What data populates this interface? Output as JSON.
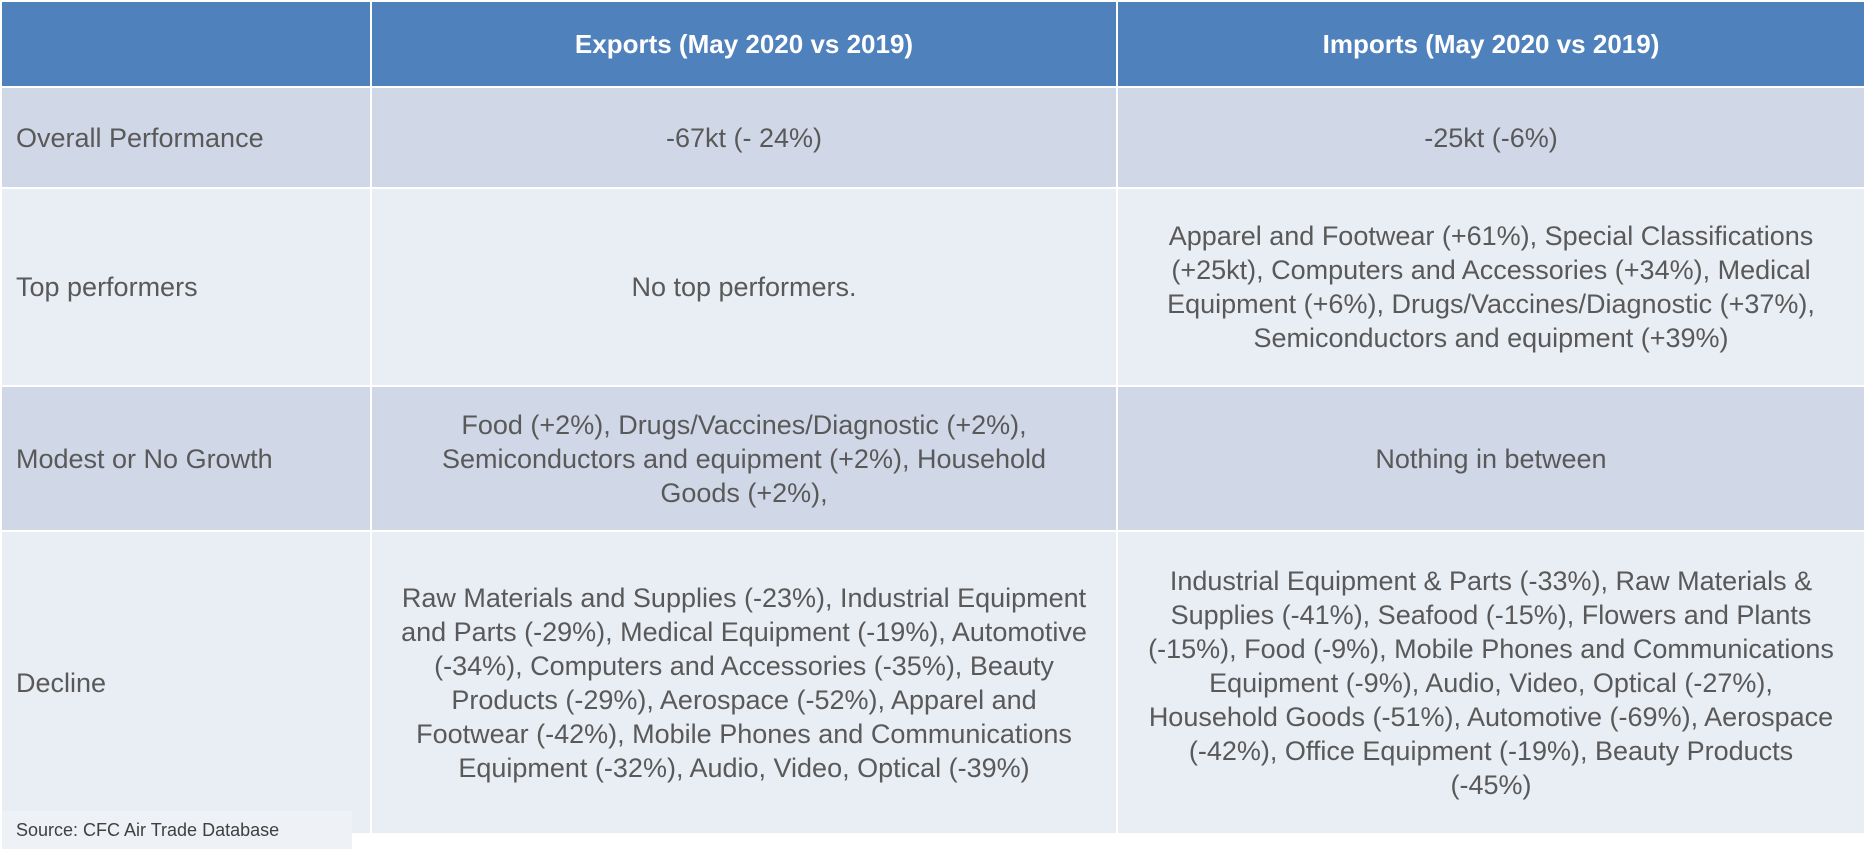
{
  "header": {
    "corner": "",
    "exports": "Exports (May 2020 vs 2019)",
    "imports": "Imports (May 2020 vs 2019)"
  },
  "rows": [
    {
      "label": "Overall Performance",
      "exports": "-67kt (- 24%)",
      "imports": "-25kt (-6%)"
    },
    {
      "label": "Top performers",
      "exports": "No top performers.",
      "imports": "Apparel and Footwear (+61%), Special Classifications (+25kt), Computers and Accessories (+34%), Medical Equipment (+6%), Drugs/Vaccines/Diagnostic (+37%), Semiconductors and equipment (+39%)"
    },
    {
      "label": "Modest or No Growth",
      "exports": "Food (+2%), Drugs/Vaccines/Diagnostic (+2%), Semiconductors and equipment (+2%), Household Goods (+2%),",
      "imports": "Nothing in between"
    },
    {
      "label": "Decline",
      "exports": "Raw Materials and Supplies (-23%), Industrial Equipment and Parts (-29%), Medical Equipment (-19%), Automotive (-34%), Computers and Accessories (-35%), Beauty Products (-29%), Aerospace (-52%), Apparel and Footwear (-42%), Mobile Phones and Communications Equipment (-32%), Audio, Video, Optical (-39%)",
      "imports": "Industrial Equipment & Parts (-33%), Raw Materials & Supplies (-41%), Seafood (-15%), Flowers and Plants (-15%), Food (-9%), Mobile Phones and Communications Equipment (-9%), Audio, Video, Optical (-27%), Household Goods (-51%), Automotive (-69%), Aerospace (-42%), Office Equipment (-19%), Beauty Products (-45%)"
    }
  ],
  "source": "Source: CFC Air Trade Database",
  "colors": {
    "header_bg": "#4f81bd",
    "row_dark": "#d0d8e8",
    "row_light": "#e9edf4",
    "text": "#595959"
  }
}
